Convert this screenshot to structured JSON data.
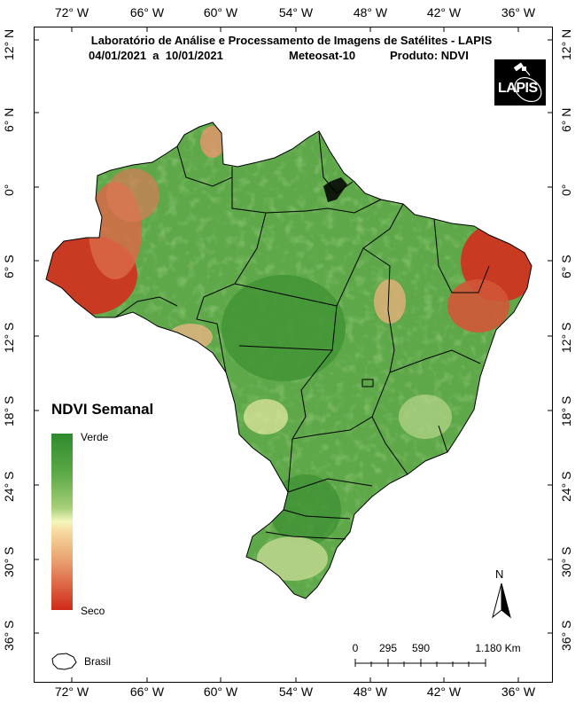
{
  "header": {
    "line1": "Laboratório de Análise e Processamento de Imagens de Satélites - LAPIS",
    "date_range": "04/01/2021  a  10/01/2021",
    "satellite": "Meteosat-10",
    "product": "Produto: NDVI"
  },
  "logo": {
    "text": "LAPIS",
    "icon": "satellite-orbit-icon"
  },
  "axes": {
    "longitude_labels": [
      "72° W",
      "66° W",
      "60° W",
      "54° W",
      "48° W",
      "42° W",
      "36° W"
    ],
    "latitude_labels": [
      "12° N",
      "6° N",
      "0°",
      "6° S",
      "12° S",
      "18° S",
      "24° S",
      "30° S",
      "36° S"
    ]
  },
  "legend": {
    "title": "NDVI Semanal",
    "high_label": "Verde",
    "low_label": "Seco",
    "colors": [
      "#2e8b2e",
      "#a6cf78",
      "#f4f7bd",
      "#e9a070",
      "#cf2a1a"
    ],
    "boundary_label": "Brasil"
  },
  "scale_bar": {
    "labels": [
      "0",
      "295",
      "590",
      "1.180 Km"
    ]
  },
  "north_arrow": {
    "label": "N"
  },
  "colors": {
    "green": "#3f9a3a",
    "dry": "#cf2a1a"
  }
}
